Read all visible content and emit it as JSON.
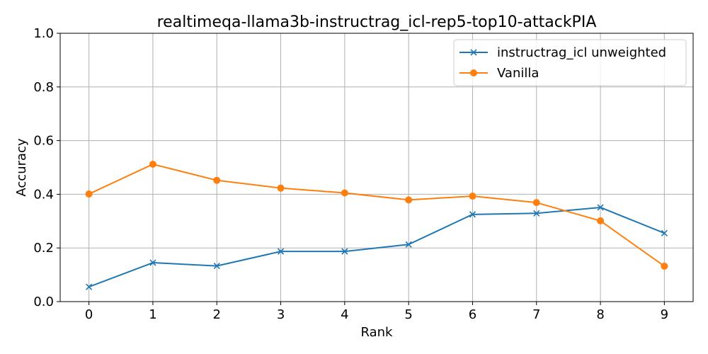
{
  "chart_data": {
    "type": "line",
    "title": "realtimeqa-llama3b-instructrag_icl-rep5-top10-attackPIA",
    "xlabel": "Rank",
    "ylabel": "Accuracy",
    "x": [
      0,
      1,
      2,
      3,
      4,
      5,
      6,
      7,
      8,
      9
    ],
    "xlim": [
      -0.45,
      9.45
    ],
    "ylim": [
      0.0,
      1.0
    ],
    "xticks": [
      "0",
      "1",
      "2",
      "3",
      "4",
      "5",
      "6",
      "7",
      "8",
      "9"
    ],
    "yticks": [
      "0.0",
      "0.2",
      "0.4",
      "0.6",
      "0.8",
      "1.0"
    ],
    "grid": true,
    "legend_position": "top-right",
    "series": [
      {
        "name": "instructrag_icl unweighted",
        "color": "#1f77b4",
        "marker": "x",
        "values": [
          0.055,
          0.145,
          0.133,
          0.187,
          0.187,
          0.213,
          0.325,
          0.329,
          0.351,
          0.255
        ]
      },
      {
        "name": "Vanilla",
        "color": "#ff7f0e",
        "marker": "circle",
        "values": [
          0.401,
          0.512,
          0.452,
          0.423,
          0.405,
          0.379,
          0.393,
          0.369,
          0.301,
          0.132
        ]
      }
    ]
  }
}
